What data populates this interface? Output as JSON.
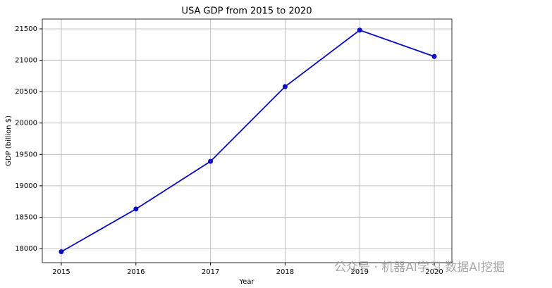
{
  "chart_data": {
    "type": "line",
    "title": "USA GDP from 2015 to 2020",
    "x_label": "Year",
    "y_label": "GDP (billion $)",
    "x": [
      2015,
      2016,
      2017,
      2018,
      2019,
      2020
    ],
    "series": [
      {
        "name": "GDP",
        "color": "#0a0ac0",
        "values": [
          17950,
          18630,
          19390,
          20580,
          21480,
          21060
        ]
      }
    ],
    "xlim": [
      2014.745,
      2020.236
    ],
    "xticks": [
      2015,
      2016,
      2017,
      2018,
      2019,
      2020
    ],
    "ylim": [
      17776,
      21657
    ],
    "yticks": [
      18000,
      18500,
      19000,
      19500,
      20000,
      20500,
      21000,
      21500
    ],
    "grid": true,
    "legend": false,
    "watermark": "公众号 · 机器AI学习 数据AI挖掘"
  }
}
